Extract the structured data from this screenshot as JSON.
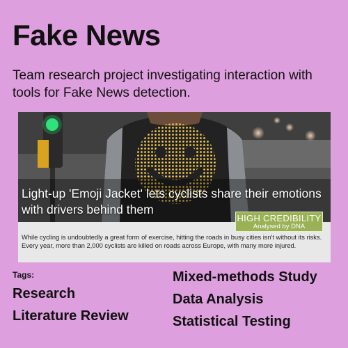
{
  "page": {
    "title": "Fake News",
    "subtitle": "Team research project investigating interaction with tools for Fake News detection."
  },
  "article_card": {
    "headline": "Light-up 'Emoji Jacket' lets cyclists share their emotions with drivers behind them",
    "badge": {
      "label": "HIGH CREDIBILITY",
      "sublabel": "Analysed by DNA"
    },
    "snippet": "While cycling is undoubtedly a great form of exercise, hitting the roads in busy cities isn't without its risks. Every year, more than 2,000 cyclists are killed on roads across Europe, with many more injured."
  },
  "tags": {
    "label": "Tags:",
    "left_column": [
      "Research",
      "Literature Review"
    ],
    "right_column": [
      "Mixed-methods Study",
      "Data Analysis",
      "Statistical Testing"
    ]
  },
  "colors": {
    "background": "#de9fde",
    "badge": "#9ab155",
    "traffic_light": "#2ee37a",
    "led_smiley": "#f2c64a"
  }
}
